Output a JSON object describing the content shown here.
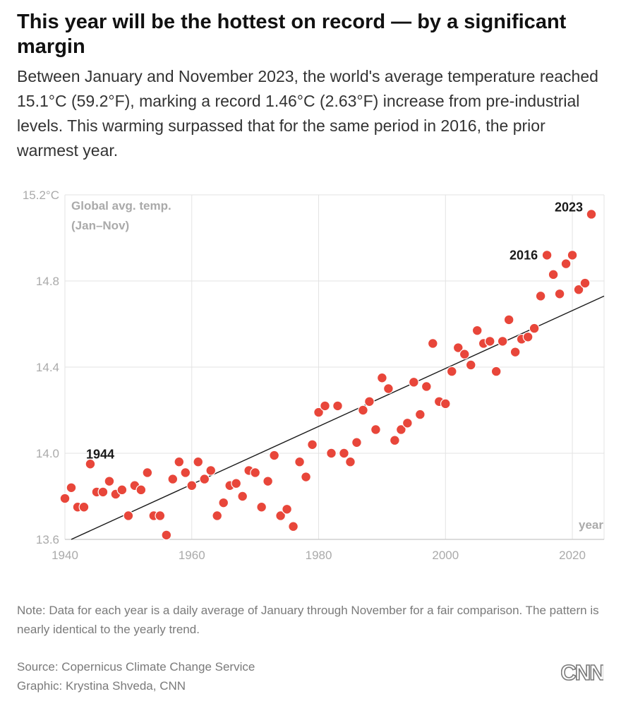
{
  "header": {
    "title": "This year will be the hottest on record — by a significant margin",
    "subtitle": "Between January and November 2023, the world's average temperature reached 15.1°C (59.2°F), marking a record 1.46°C (2.63°F) increase from pre-industrial levels. This warming surpassed that for the same period in 2016, the prior warmest year."
  },
  "footer": {
    "note": "Note: Data for each year is a daily average of January through November for a fair comparison. The pattern is nearly identical to the yearly trend.",
    "source": "Source: Copernicus Climate Change Service",
    "credit": "Graphic: Krystina Shveda, CNN",
    "logo_text": "CNN"
  },
  "colors": {
    "point": "#e8463a",
    "point_stroke": "#ffffff",
    "trend": "#1a1a1a",
    "grid": "#e3e3e3",
    "axis_text": "#aaaaaa",
    "annotation": "#1a1a1a"
  },
  "chart_data": {
    "type": "scatter",
    "title": "Global avg. temp. (Jan–Nov)",
    "ylabel_lines": [
      "Global avg. temp.",
      "(Jan–Nov)"
    ],
    "xlabel": "year",
    "xlim": [
      1940,
      2025
    ],
    "ylim": [
      13.6,
      15.2
    ],
    "x_ticks": [
      1940,
      1960,
      1980,
      2000,
      2020
    ],
    "y_ticks": [
      13.6,
      14.0,
      14.4,
      14.8,
      15.2
    ],
    "y_tick_labels": [
      "13.6",
      "14.0",
      "14.4",
      "14.8",
      "15.2°C"
    ],
    "grid": true,
    "series": [
      {
        "name": "Global average temperature (Jan–Nov)",
        "x": [
          1940,
          1941,
          1942,
          1943,
          1944,
          1945,
          1946,
          1947,
          1948,
          1949,
          1950,
          1951,
          1952,
          1953,
          1954,
          1955,
          1956,
          1957,
          1958,
          1959,
          1960,
          1961,
          1962,
          1963,
          1964,
          1965,
          1966,
          1967,
          1968,
          1969,
          1970,
          1971,
          1972,
          1973,
          1974,
          1975,
          1976,
          1977,
          1978,
          1979,
          1980,
          1981,
          1982,
          1983,
          1984,
          1985,
          1986,
          1987,
          1988,
          1989,
          1990,
          1991,
          1992,
          1993,
          1994,
          1995,
          1996,
          1997,
          1998,
          1999,
          2000,
          2001,
          2002,
          2003,
          2004,
          2005,
          2006,
          2007,
          2008,
          2009,
          2010,
          2011,
          2012,
          2013,
          2014,
          2015,
          2016,
          2017,
          2018,
          2019,
          2020,
          2021,
          2022,
          2023
        ],
        "y": [
          13.79,
          13.84,
          13.75,
          13.75,
          13.95,
          13.82,
          13.82,
          13.87,
          13.81,
          13.83,
          13.71,
          13.85,
          13.83,
          13.91,
          13.71,
          13.71,
          13.62,
          13.88,
          13.96,
          13.91,
          13.85,
          13.96,
          13.88,
          13.92,
          13.71,
          13.77,
          13.85,
          13.86,
          13.8,
          13.92,
          13.91,
          13.75,
          13.87,
          13.99,
          13.71,
          13.74,
          13.66,
          13.96,
          13.89,
          14.04,
          14.19,
          14.22,
          14.0,
          14.22,
          14.0,
          13.96,
          14.05,
          14.2,
          14.24,
          14.11,
          14.35,
          14.3,
          14.06,
          14.11,
          14.14,
          14.33,
          14.18,
          14.31,
          14.51,
          14.24,
          14.23,
          14.38,
          14.49,
          14.46,
          14.41,
          14.57,
          14.51,
          14.52,
          14.38,
          14.52,
          14.62,
          14.47,
          14.53,
          14.54,
          14.58,
          14.73,
          14.92,
          14.83,
          14.74,
          14.88,
          14.92,
          14.76,
          14.79,
          15.11
        ]
      }
    ],
    "trend_line": {
      "x": [
        1941,
        2025
      ],
      "y": [
        13.6,
        14.73
      ]
    },
    "annotations": [
      {
        "year": 1944,
        "label": "1944",
        "value": 13.95
      },
      {
        "year": 2016,
        "label": "2016",
        "value": 14.92
      },
      {
        "year": 2023,
        "label": "2023",
        "value": 15.11
      }
    ]
  }
}
